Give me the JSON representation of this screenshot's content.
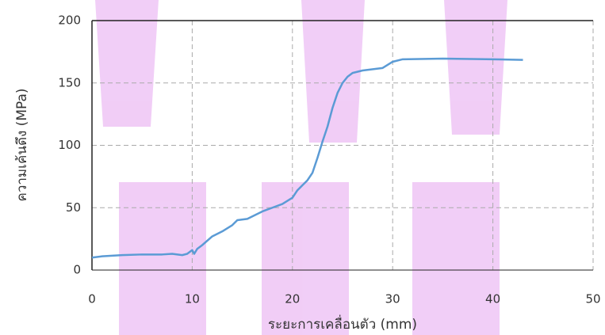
{
  "chart_data": {
    "type": "line",
    "xlabel": "ระยะการเคลื่อนตัว (mm)",
    "ylabel": "ความเค้นดึง (MPa)",
    "x": [
      0,
      1,
      3,
      5,
      7,
      8,
      9,
      9.5,
      10,
      10.2,
      10.5,
      11,
      12,
      13,
      14,
      14.5,
      15.5,
      17,
      18,
      19,
      20,
      20.5,
      21,
      21.5,
      22,
      22.5,
      23,
      23.5,
      24,
      24.5,
      25,
      25.5,
      26,
      27,
      29,
      30,
      31,
      35,
      40,
      43
    ],
    "series": [
      {
        "color": "#5b9bd5",
        "values": [
          10,
          11,
          12,
          12.5,
          12.5,
          13,
          12,
          13,
          16,
          13,
          17,
          20,
          27,
          31,
          36,
          40,
          41,
          47,
          50,
          53,
          58,
          64,
          68,
          72,
          78,
          90,
          103,
          115,
          130,
          142,
          150,
          155,
          158,
          160,
          162,
          167,
          169,
          169.5,
          169,
          168.5
        ]
      }
    ],
    "xlim": [
      0,
      50
    ],
    "xticks": [
      0,
      10,
      20,
      30,
      40,
      50
    ],
    "ylim": [
      0,
      200
    ],
    "yticks": [
      0,
      50,
      100,
      150,
      200
    ],
    "grid": true
  }
}
